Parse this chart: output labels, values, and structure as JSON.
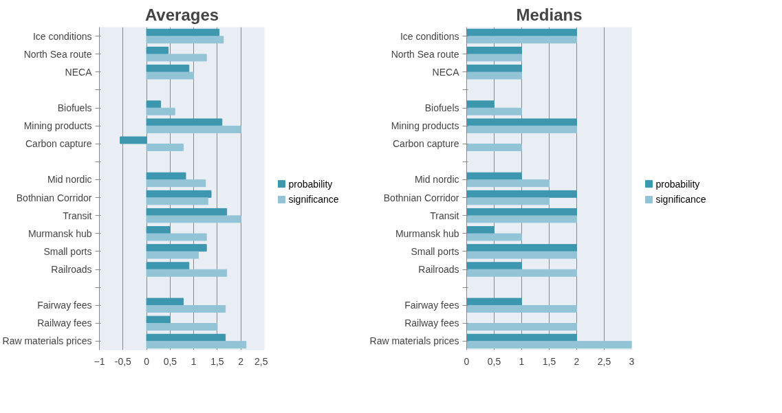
{
  "chart_data": [
    {
      "type": "bar",
      "orientation": "horizontal",
      "title": "Averages",
      "categories": [
        "Ice conditions",
        "North Sea route",
        "NECA",
        null,
        "Biofuels",
        "Mining products",
        "Carbon capture",
        null,
        "Mid nordic",
        "Bothnian Corridor",
        "Transit",
        "Murmansk hub",
        "Small ports",
        "Railroads",
        null,
        "Fairway fees",
        "Railway fees",
        "Raw materials prices"
      ],
      "series": [
        {
          "name": "probability",
          "color": "#3d97ae",
          "values": [
            1.54,
            0.46,
            0.9,
            null,
            0.3,
            1.6,
            -0.56,
            null,
            0.83,
            1.37,
            1.7,
            0.5,
            1.27,
            0.9,
            null,
            0.78,
            0.5,
            1.67
          ]
        },
        {
          "name": "significance",
          "color": "#92c4d6",
          "values": [
            1.63,
            1.27,
            1.0,
            null,
            0.6,
            2.0,
            0.78,
            null,
            1.25,
            1.3,
            2.0,
            1.27,
            1.1,
            1.7,
            null,
            1.67,
            1.5,
            2.11
          ]
        }
      ],
      "xlim": [
        -1,
        2.5
      ],
      "xticks": [
        -1,
        {
          "value": -0.5,
          "label": "-0,5"
        },
        0,
        {
          "value": 0.5,
          "label": "0,5"
        },
        1,
        {
          "value": 1.5,
          "label": "1,5"
        },
        2,
        {
          "value": 2.5,
          "label": "2,5"
        }
      ],
      "grid": "x",
      "legend": "right"
    },
    {
      "type": "bar",
      "orientation": "horizontal",
      "title": "Medians",
      "categories": [
        "Ice conditions",
        "North Sea route",
        "NECA",
        null,
        "Biofuels",
        "Mining products",
        "Carbon capture",
        null,
        "Mid nordic",
        "Bothnian Corridor",
        "Transit",
        "Murmansk hub",
        "Small ports",
        "Railroads",
        null,
        "Fairway fees",
        "Railway fees",
        "Raw materials prices"
      ],
      "series": [
        {
          "name": "probability",
          "color": "#3d97ae",
          "values": [
            2,
            1,
            1,
            null,
            0.5,
            2,
            0,
            null,
            1,
            2,
            2,
            0.5,
            2,
            1,
            null,
            1,
            0,
            2
          ]
        },
        {
          "name": "significance",
          "color": "#92c4d6",
          "values": [
            2,
            1,
            1,
            null,
            1,
            2,
            1,
            null,
            1.5,
            1.5,
            2,
            1,
            2,
            2,
            null,
            2,
            2,
            3
          ]
        }
      ],
      "xlim": [
        0,
        3
      ],
      "xticks": [
        0,
        {
          "value": 0.5,
          "label": "0,5"
        },
        1,
        {
          "value": 1.5,
          "label": "1,5"
        },
        2,
        {
          "value": 2.5,
          "label": "2,5"
        },
        3
      ],
      "grid": "x",
      "legend": "right"
    }
  ]
}
